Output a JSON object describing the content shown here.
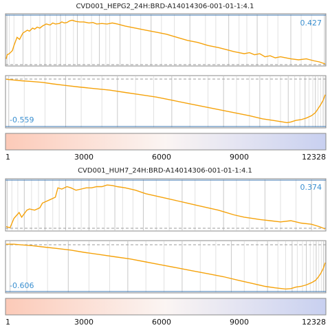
{
  "colors": {
    "line": "#f5a20a",
    "hits": "#9a9a9a",
    "frame": "#8a8a8a",
    "axis": "#3a74b0",
    "es_text": "#3a8fd0",
    "dash": "#9a9a9a",
    "gradient_left": "#fccab8",
    "gradient_mid": "#fbf5f3",
    "gradient_right": "#c8d0f0"
  },
  "chart_data": [
    {
      "type": "line",
      "title": "CVD001_HEPG2_24H:BRD-A14014306-001-01-1:4.1",
      "xlim": [
        1,
        12328
      ],
      "x_ticks": [
        "1",
        "3000",
        "6000",
        "9000",
        "12328"
      ],
      "color_bar": "rank gradient from up (red) to down (blue)",
      "up_panel": {
        "es_label": "0.427",
        "es_value": 0.427,
        "ylim": [
          0,
          0.47
        ],
        "x": [
          1,
          40,
          120,
          240,
          300,
          420,
          520,
          640,
          700,
          820,
          900,
          1020,
          1100,
          1200,
          1300,
          1400,
          1550,
          1700,
          1800,
          1900,
          2050,
          2150,
          2250,
          2350,
          2450,
          2550,
          2700,
          2850,
          3000,
          3200,
          3350,
          3500,
          3700,
          3900,
          4100,
          4300,
          4600,
          5000,
          5400,
          5800,
          6200,
          6600,
          7000,
          7400,
          7800,
          8200,
          8500,
          8800,
          9000,
          9200,
          9400,
          9600,
          9800,
          10000,
          10200,
          10400,
          10600,
          10800,
          11000,
          11300,
          11600,
          11900,
          12100,
          12328
        ],
        "y": [
          0.05,
          0.09,
          0.1,
          0.13,
          0.18,
          0.26,
          0.24,
          0.3,
          0.31,
          0.33,
          0.32,
          0.35,
          0.34,
          0.36,
          0.35,
          0.37,
          0.39,
          0.38,
          0.4,
          0.39,
          0.395,
          0.41,
          0.4,
          0.405,
          0.42,
          0.427,
          0.415,
          0.41,
          0.41,
          0.4,
          0.405,
          0.39,
          0.395,
          0.39,
          0.4,
          0.39,
          0.37,
          0.35,
          0.33,
          0.31,
          0.29,
          0.26,
          0.23,
          0.21,
          0.18,
          0.16,
          0.14,
          0.12,
          0.11,
          0.1,
          0.11,
          0.09,
          0.1,
          0.07,
          0.08,
          0.06,
          0.07,
          0.06,
          0.05,
          0.04,
          0.05,
          0.03,
          0.02,
          0.0
        ],
        "hits": [
          30,
          120,
          300,
          650,
          950,
          1300,
          1500,
          1700,
          1950,
          2100,
          2300,
          2600,
          2750,
          3000,
          3300,
          3600,
          3850,
          4000,
          4400,
          4800,
          5200,
          5600,
          6000,
          6500,
          7100,
          7700,
          8100,
          8600,
          9000,
          9300,
          9700,
          10100,
          10500,
          11000,
          11400,
          11800,
          12300
        ]
      },
      "down_panel": {
        "es_label": "-0.559",
        "es_value": -0.559,
        "ylim": [
          -0.6,
          0.02
        ],
        "x": [
          1,
          300,
          600,
          1000,
          1400,
          1800,
          2300,
          2800,
          3400,
          4000,
          4600,
          5200,
          5800,
          6400,
          7000,
          7600,
          8200,
          8800,
          9400,
          9900,
          10300,
          10700,
          10850,
          11000,
          11200,
          11400,
          11600,
          11800,
          11950,
          12050,
          12150,
          12250,
          12328
        ],
        "y": [
          0.0,
          -0.01,
          -0.02,
          -0.03,
          -0.04,
          -0.06,
          -0.08,
          -0.1,
          -0.12,
          -0.14,
          -0.17,
          -0.2,
          -0.23,
          -0.27,
          -0.31,
          -0.35,
          -0.39,
          -0.43,
          -0.47,
          -0.51,
          -0.53,
          -0.55,
          -0.559,
          -0.55,
          -0.53,
          -0.52,
          -0.5,
          -0.47,
          -0.43,
          -0.38,
          -0.33,
          -0.27,
          -0.2
        ],
        "hits": [
          100,
          700,
          1500,
          2300,
          2900,
          3700,
          4300,
          5000,
          5700,
          6400,
          7100,
          7800,
          8400,
          8900,
          9400,
          9800,
          10200,
          10600,
          10900,
          11150,
          11350,
          11550,
          11700,
          11850,
          11950,
          12050,
          12150,
          12250,
          12320
        ]
      }
    },
    {
      "type": "line",
      "title": "CVD001_HUH7_24H:BRD-A14014306-001-01-1:4.1",
      "xlim": [
        1,
        12328
      ],
      "x_ticks": [
        "1",
        "3000",
        "6000",
        "9000",
        "12328"
      ],
      "color_bar": "rank gradient from up (red) to down (blue)",
      "up_panel": {
        "es_label": "0.374",
        "es_value": 0.374,
        "ylim": [
          0,
          0.41
        ],
        "x": [
          1,
          150,
          300,
          500,
          600,
          800,
          900,
          1100,
          1300,
          1400,
          1500,
          1700,
          1900,
          2000,
          2150,
          2350,
          2500,
          2700,
          2900,
          3100,
          3300,
          3500,
          3700,
          3900,
          4100,
          4300,
          4600,
          5000,
          5400,
          5800,
          6200,
          6600,
          7000,
          7400,
          7800,
          8200,
          8500,
          8800,
          9200,
          9500,
          9800,
          10200,
          10600,
          11000,
          11400,
          11800,
          12100,
          12328
        ],
        "y": [
          0.02,
          0.01,
          0.09,
          0.14,
          0.1,
          0.16,
          0.17,
          0.16,
          0.18,
          0.22,
          0.23,
          0.25,
          0.27,
          0.35,
          0.34,
          0.36,
          0.35,
          0.33,
          0.34,
          0.35,
          0.35,
          0.36,
          0.36,
          0.374,
          0.37,
          0.36,
          0.35,
          0.33,
          0.3,
          0.28,
          0.26,
          0.24,
          0.22,
          0.2,
          0.18,
          0.16,
          0.14,
          0.12,
          0.1,
          0.09,
          0.08,
          0.07,
          0.06,
          0.07,
          0.05,
          0.04,
          0.02,
          0.0
        ],
        "hits": [
          40,
          220,
          450,
          700,
          980,
          1250,
          1500,
          1800,
          2050,
          2300,
          2600,
          2900,
          3200,
          3500,
          3800,
          4200,
          4500,
          4900,
          5300,
          5800,
          6300,
          6800,
          7300,
          7900,
          8400,
          8900,
          9400,
          10000,
          10600,
          11200,
          11800,
          12300
        ]
      },
      "down_panel": {
        "es_label": "-0.606",
        "es_value": -0.606,
        "ylim": [
          -0.63,
          0.02
        ],
        "x": [
          1,
          300,
          600,
          1000,
          1500,
          2000,
          2500,
          3000,
          3600,
          4200,
          4800,
          5400,
          6000,
          6600,
          7200,
          7800,
          8400,
          9000,
          9500,
          10000,
          10400,
          10800,
          11000,
          11200,
          11400,
          11600,
          11800,
          11950,
          12050,
          12150,
          12250,
          12328
        ],
        "y": [
          0.0,
          0.0,
          -0.01,
          -0.02,
          -0.04,
          -0.06,
          -0.08,
          -0.11,
          -0.14,
          -0.17,
          -0.2,
          -0.24,
          -0.28,
          -0.32,
          -0.36,
          -0.4,
          -0.44,
          -0.49,
          -0.53,
          -0.57,
          -0.59,
          -0.606,
          -0.6,
          -0.58,
          -0.57,
          -0.55,
          -0.52,
          -0.49,
          -0.45,
          -0.4,
          -0.33,
          -0.25
        ],
        "hits": [
          150,
          800,
          1600,
          2400,
          3200,
          4000,
          4700,
          5400,
          6100,
          6800,
          7500,
          8100,
          8700,
          9200,
          9700,
          10100,
          10500,
          10800,
          11050,
          11250,
          11450,
          11600,
          11750,
          11880,
          11980,
          12080,
          12180,
          12260,
          12320
        ]
      }
    }
  ]
}
